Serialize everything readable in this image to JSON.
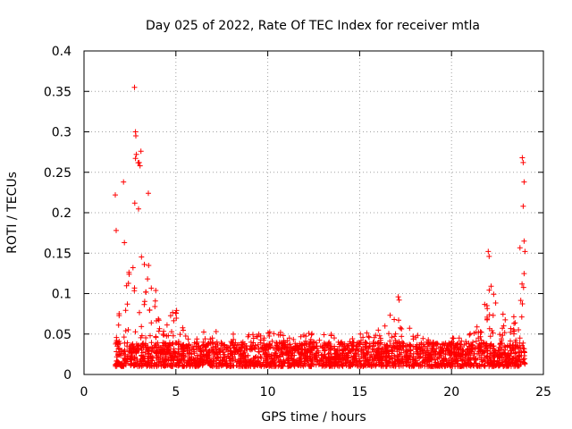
{
  "chart_data": {
    "type": "scatter",
    "title": "Day 025 of 2022, Rate Of TEC Index for receiver mtla",
    "xlabel": "GPS time / hours",
    "ylabel": "ROTI / TECUs",
    "xlim": [
      0,
      25
    ],
    "ylim": [
      0,
      0.4
    ],
    "xticks": [
      0,
      5,
      10,
      15,
      20,
      25
    ],
    "xtick_labels": [
      "0",
      "5",
      "10",
      "15",
      "20",
      "25"
    ],
    "yticks": [
      0,
      0.05,
      0.1,
      0.15,
      0.2,
      0.25,
      0.3,
      0.35,
      0.4
    ],
    "ytick_labels": [
      "0",
      "0.05",
      "0.1",
      "0.15",
      "0.2",
      "0.25",
      "0.3",
      "0.35",
      "0.4"
    ],
    "grid": true,
    "marker": "+",
    "color": "#ff0000",
    "series": [
      {
        "name": "ROTI",
        "envelope": [
          {
            "x": 1.7,
            "y": 0.04
          },
          {
            "x": 2.0,
            "y": 0.12
          },
          {
            "x": 2.5,
            "y": 0.14
          },
          {
            "x": 2.8,
            "y": 0.28
          },
          {
            "x": 3.0,
            "y": 0.26
          },
          {
            "x": 3.5,
            "y": 0.16
          },
          {
            "x": 4.0,
            "y": 0.11
          },
          {
            "x": 4.5,
            "y": 0.06
          },
          {
            "x": 5.0,
            "y": 0.09
          },
          {
            "x": 5.5,
            "y": 0.05
          },
          {
            "x": 7.0,
            "y": 0.055
          },
          {
            "x": 9.0,
            "y": 0.05
          },
          {
            "x": 11.0,
            "y": 0.055
          },
          {
            "x": 13.0,
            "y": 0.05
          },
          {
            "x": 15.0,
            "y": 0.05
          },
          {
            "x": 16.0,
            "y": 0.055
          },
          {
            "x": 17.0,
            "y": 0.085
          },
          {
            "x": 18.0,
            "y": 0.05
          },
          {
            "x": 19.5,
            "y": 0.04
          },
          {
            "x": 20.5,
            "y": 0.05
          },
          {
            "x": 21.5,
            "y": 0.06
          },
          {
            "x": 22.0,
            "y": 0.12
          },
          {
            "x": 22.5,
            "y": 0.1
          },
          {
            "x": 23.0,
            "y": 0.07
          },
          {
            "x": 23.5,
            "y": 0.08
          },
          {
            "x": 23.8,
            "y": 0.22
          },
          {
            "x": 24.0,
            "y": 0.26
          }
        ],
        "highlights": [
          {
            "x": 1.7,
            "y": 0.222
          },
          {
            "x": 1.75,
            "y": 0.178
          },
          {
            "x": 2.15,
            "y": 0.238
          },
          {
            "x": 2.2,
            "y": 0.163
          },
          {
            "x": 2.75,
            "y": 0.355
          },
          {
            "x": 2.8,
            "y": 0.3
          },
          {
            "x": 2.82,
            "y": 0.295
          },
          {
            "x": 2.85,
            "y": 0.272
          },
          {
            "x": 3.0,
            "y": 0.262
          },
          {
            "x": 3.05,
            "y": 0.258
          },
          {
            "x": 3.1,
            "y": 0.276
          },
          {
            "x": 3.5,
            "y": 0.224
          },
          {
            "x": 17.1,
            "y": 0.096
          },
          {
            "x": 17.15,
            "y": 0.092
          },
          {
            "x": 22.0,
            "y": 0.152
          },
          {
            "x": 22.05,
            "y": 0.146
          },
          {
            "x": 23.85,
            "y": 0.268
          },
          {
            "x": 23.9,
            "y": 0.262
          },
          {
            "x": 23.95,
            "y": 0.238
          },
          {
            "x": 23.9,
            "y": 0.208
          },
          {
            "x": 23.95,
            "y": 0.165
          },
          {
            "x": 24.0,
            "y": 0.152
          }
        ]
      }
    ]
  }
}
